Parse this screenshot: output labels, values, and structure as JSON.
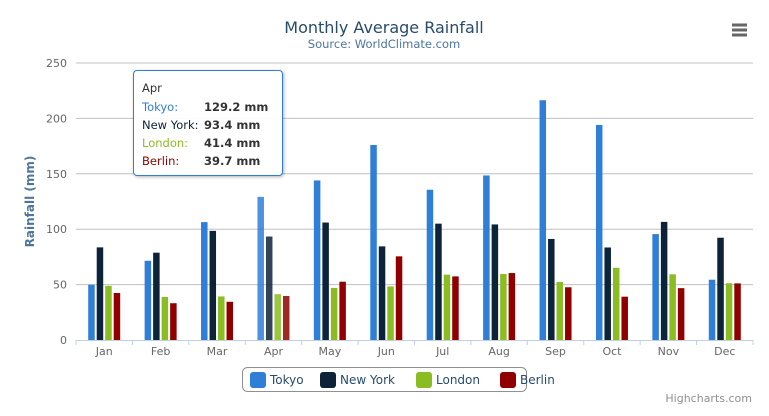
{
  "chart_data": {
    "type": "bar",
    "title": "Monthly Average Rainfall",
    "subtitle": "Source: WorldClimate.com",
    "xlabel": "",
    "ylabel": "Rainfall (mm)",
    "ylim": [
      0,
      250
    ],
    "yticks": [
      "0",
      "50",
      "100",
      "150",
      "200",
      "250"
    ],
    "grid": true,
    "legend": "bottom-center",
    "categories": [
      "Jan",
      "Feb",
      "Mar",
      "Apr",
      "May",
      "Jun",
      "Jul",
      "Aug",
      "Sep",
      "Oct",
      "Nov",
      "Dec"
    ],
    "series": [
      {
        "name": "Tokyo",
        "color": "#2f7ed8",
        "values": [
          49.9,
          71.5,
          106.4,
          129.2,
          144.0,
          176.0,
          135.6,
          148.5,
          216.4,
          194.1,
          95.6,
          54.4
        ]
      },
      {
        "name": "New York",
        "color": "#0d233a",
        "values": [
          83.6,
          78.8,
          98.5,
          93.4,
          106.0,
          84.5,
          105.0,
          104.3,
          91.2,
          83.5,
          106.6,
          92.3
        ]
      },
      {
        "name": "London",
        "color": "#8bbc21",
        "values": [
          48.9,
          38.8,
          39.3,
          41.4,
          47.0,
          48.3,
          59.0,
          59.6,
          52.4,
          65.2,
          59.3,
          51.2
        ]
      },
      {
        "name": "Berlin",
        "color": "#910000",
        "values": [
          42.4,
          33.2,
          34.5,
          39.7,
          52.6,
          75.5,
          57.4,
          60.4,
          47.6,
          39.1,
          46.8,
          51.1
        ]
      }
    ],
    "highlighted_category": "Apr"
  },
  "tooltip": {
    "header": "Apr",
    "rows": [
      {
        "label": "Tokyo:",
        "value": "129.2 mm",
        "color": "#2f7ed8"
      },
      {
        "label": "New York:",
        "value": "93.4 mm",
        "color": "#0d233a"
      },
      {
        "label": "London:",
        "value": "41.4 mm",
        "color": "#8bbc21"
      },
      {
        "label": "Berlin:",
        "value": "39.7 mm",
        "color": "#910000"
      }
    ]
  },
  "credits": "Highcharts.com",
  "menu_icon": "hamburger-menu-icon"
}
